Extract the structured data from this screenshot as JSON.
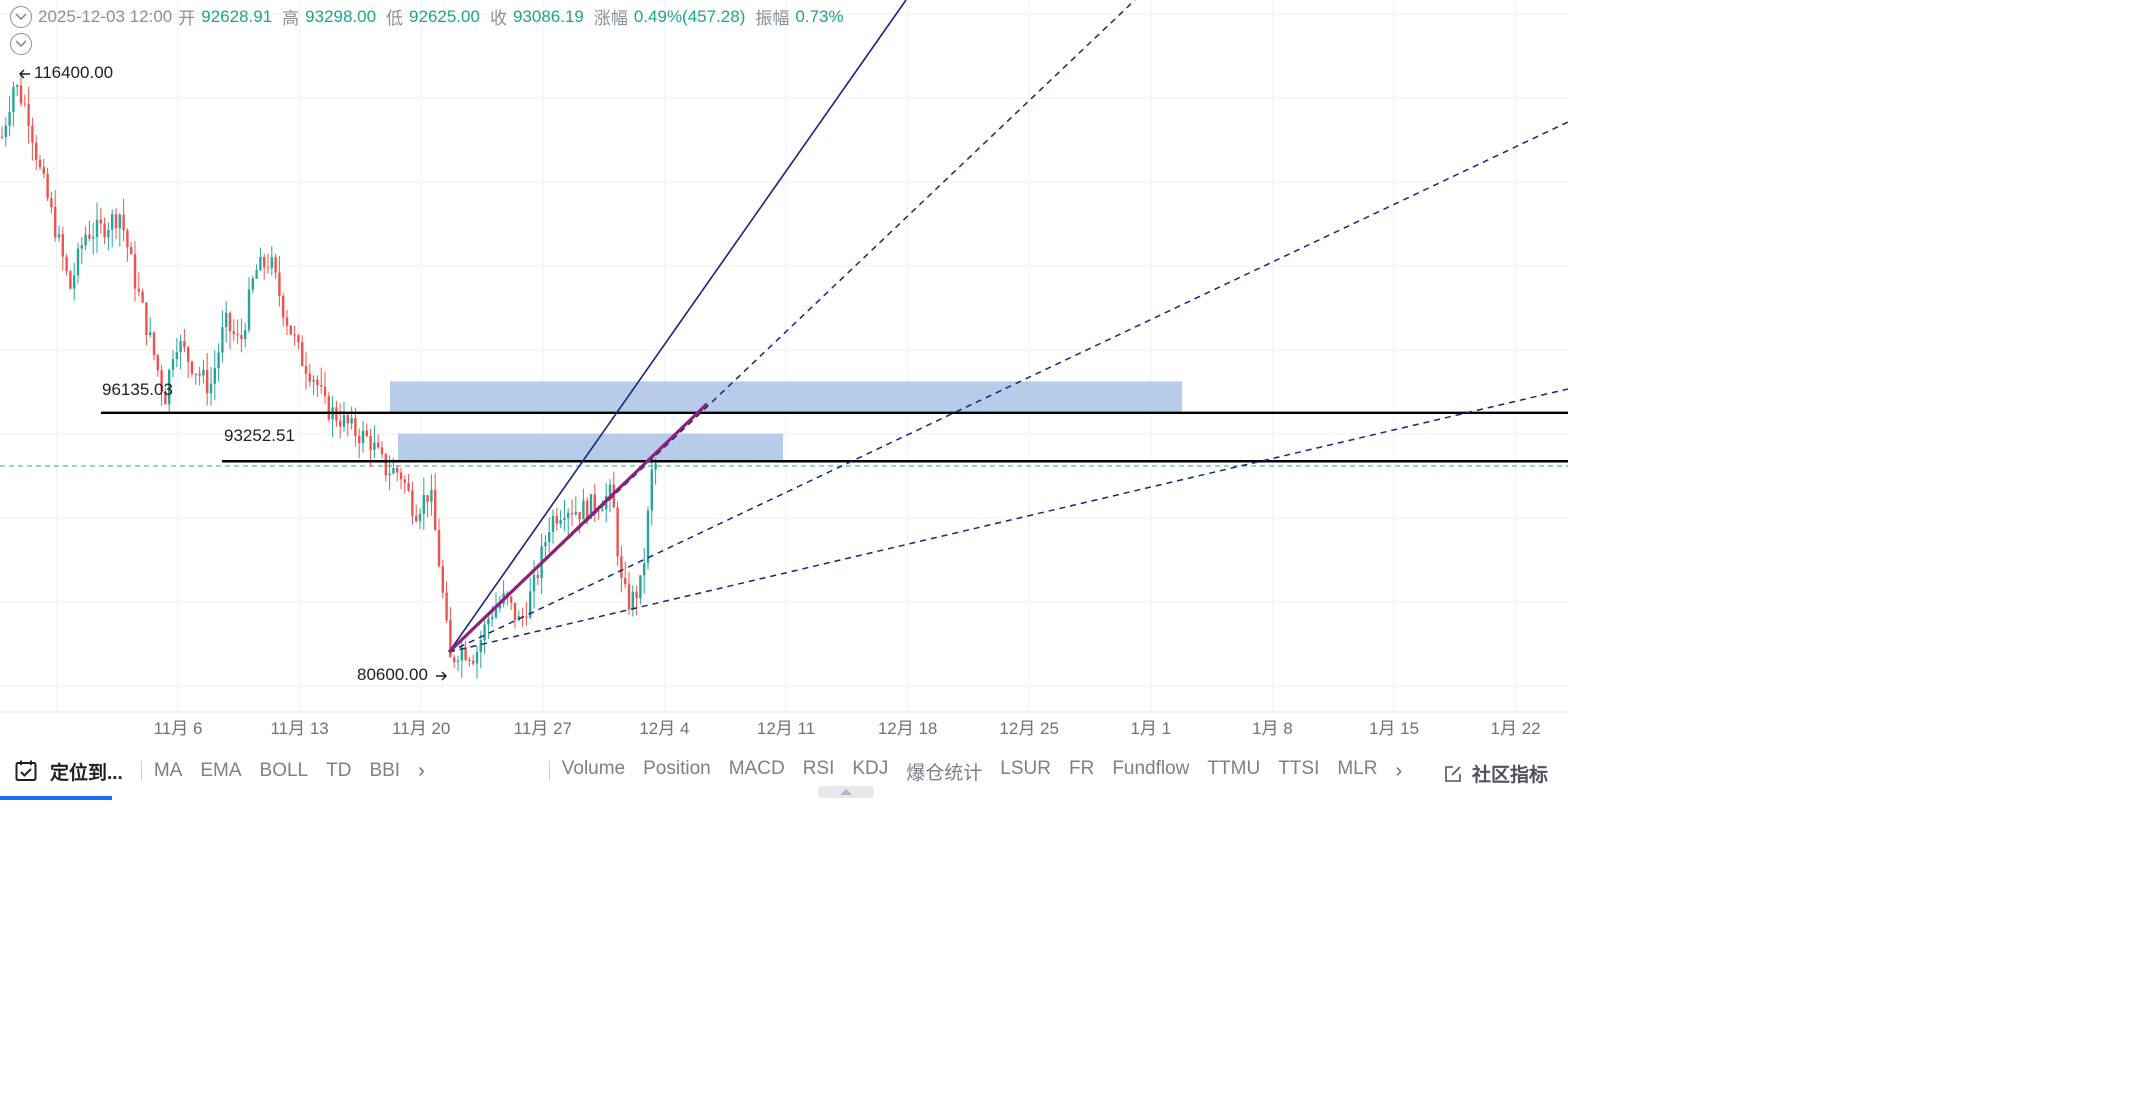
{
  "header": {
    "datetime": "2025-12-03 12:00",
    "open_label": "开",
    "open": "92628.91",
    "high_label": "高",
    "high": "93298.00",
    "low_label": "低",
    "low": "92625.00",
    "close_label": "收",
    "close": "93086.19",
    "change_label": "涨幅",
    "change": "0.49%(457.28)",
    "amp_label": "振幅",
    "amp": "0.73%"
  },
  "annotations": {
    "max_label": "116400.00",
    "min_label": "80600.00",
    "level1_label": "96135.03",
    "level2_label": "93252.51"
  },
  "chart_data": {
    "type": "candlestick",
    "x_tick_labels": [
      "11月 6",
      "11月 13",
      "11月 20",
      "11月 27",
      "12月 4",
      "12月 11",
      "12月 18",
      "12月 25",
      "1月 1",
      "1月 8",
      "1月 15",
      "1月 22"
    ],
    "high_marker": 116400.0,
    "low_marker": 80600.0,
    "horizontal_levels": [
      96135.03,
      93252.51
    ],
    "last_close": 93086.19,
    "colors": {
      "up": "#26a69a",
      "down": "#ef5350",
      "trend": "#1a237e",
      "wedge": "#8e1f7a",
      "zone": "#b3c9e8"
    },
    "grid": true,
    "legend": "none"
  },
  "toolbar": {
    "locate_label": "定位到...",
    "main_indicators": [
      "MA",
      "EMA",
      "BOLL",
      "TD",
      "BBI"
    ],
    "sub_indicators": [
      "Volume",
      "Position",
      "MACD",
      "RSI",
      "KDJ",
      "爆仓统计",
      "LSUR",
      "FR",
      "Fundflow",
      "TTMU",
      "TTSI",
      "MLR"
    ],
    "community_label": "社区指标"
  }
}
